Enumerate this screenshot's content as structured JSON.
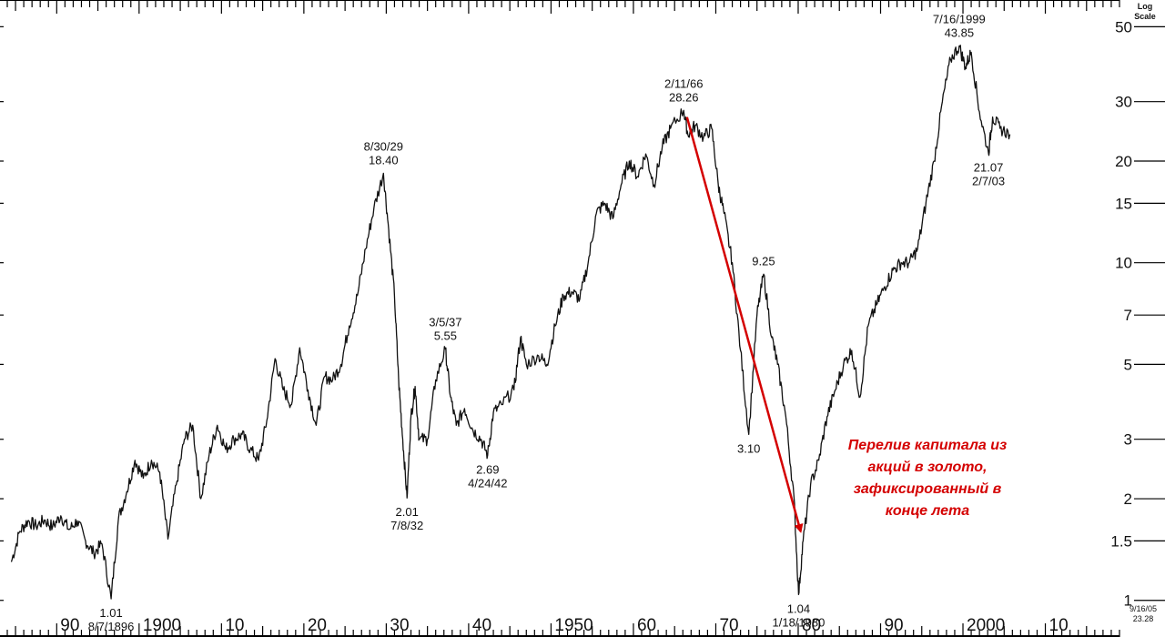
{
  "chart_data": {
    "type": "line",
    "title": "",
    "scale_label": [
      "Log",
      "Scale"
    ],
    "ylim": [
      0.95,
      55
    ],
    "xlim": [
      1884,
      2019
    ],
    "y_scale": "log",
    "grid": false,
    "yticks": [
      {
        "v": 50,
        "label": "50"
      },
      {
        "v": 30,
        "label": "30"
      },
      {
        "v": 20,
        "label": "20"
      },
      {
        "v": 15,
        "label": "15"
      },
      {
        "v": 10,
        "label": "10"
      },
      {
        "v": 7,
        "label": "7"
      },
      {
        "v": 5,
        "label": "5"
      },
      {
        "v": 3,
        "label": "3"
      },
      {
        "v": 2,
        "label": "2"
      },
      {
        "v": 1.5,
        "label": "1.5"
      },
      {
        "v": 1,
        "label": "1"
      }
    ],
    "xticks": [
      {
        "v": 1890,
        "label": "90"
      },
      {
        "v": 1900,
        "label": "1900"
      },
      {
        "v": 1910,
        "label": "10"
      },
      {
        "v": 1920,
        "label": "20"
      },
      {
        "v": 1930,
        "label": "30"
      },
      {
        "v": 1940,
        "label": "40"
      },
      {
        "v": 1950,
        "label": "1950"
      },
      {
        "v": 1960,
        "label": "60"
      },
      {
        "v": 1970,
        "label": "70"
      },
      {
        "v": 1980,
        "label": "80"
      },
      {
        "v": 1990,
        "label": "90"
      },
      {
        "v": 2000,
        "label": "2000"
      },
      {
        "v": 2010,
        "label": "10"
      }
    ],
    "series": [
      {
        "points": [
          [
            1884.5,
            1.3
          ],
          [
            1885.5,
            1.6
          ],
          [
            1886.5,
            1.72
          ],
          [
            1887.5,
            1.66
          ],
          [
            1888.5,
            1.73
          ],
          [
            1889.5,
            1.65
          ],
          [
            1890.5,
            1.78
          ],
          [
            1891.5,
            1.62
          ],
          [
            1892.5,
            1.72
          ],
          [
            1893.5,
            1.5
          ],
          [
            1894.5,
            1.38
          ],
          [
            1895.5,
            1.47
          ],
          [
            1896.6,
            1.01
          ],
          [
            1897.5,
            1.75
          ],
          [
            1898.5,
            2.1
          ],
          [
            1899.5,
            2.6
          ],
          [
            1900.5,
            2.3
          ],
          [
            1901.5,
            2.6
          ],
          [
            1902.5,
            2.4
          ],
          [
            1903.5,
            1.52
          ],
          [
            1904.5,
            2.2
          ],
          [
            1905.5,
            3.0
          ],
          [
            1906.5,
            3.3
          ],
          [
            1907.5,
            2.0
          ],
          [
            1908.5,
            2.7
          ],
          [
            1909.5,
            3.3
          ],
          [
            1910.5,
            2.8
          ],
          [
            1911.5,
            3.0
          ],
          [
            1912.5,
            3.1
          ],
          [
            1913.5,
            2.8
          ],
          [
            1914.5,
            2.6
          ],
          [
            1915.5,
            3.4
          ],
          [
            1916.5,
            5.2
          ],
          [
            1917.5,
            4.2
          ],
          [
            1918.5,
            3.8
          ],
          [
            1919.5,
            5.6
          ],
          [
            1920.5,
            4.2
          ],
          [
            1921.5,
            3.3
          ],
          [
            1922.5,
            4.6
          ],
          [
            1923.5,
            4.5
          ],
          [
            1924.5,
            5.0
          ],
          [
            1925.5,
            6.5
          ],
          [
            1926.5,
            8.0
          ],
          [
            1927.5,
            11.0
          ],
          [
            1928.5,
            14.5
          ],
          [
            1929.66,
            18.4
          ],
          [
            1930.3,
            12.5
          ],
          [
            1931.0,
            8.0
          ],
          [
            1931.5,
            4.5
          ],
          [
            1932.0,
            3.0
          ],
          [
            1932.52,
            2.01
          ],
          [
            1933.0,
            3.5
          ],
          [
            1933.5,
            4.3
          ],
          [
            1934.0,
            3.0
          ],
          [
            1935.0,
            3.0
          ],
          [
            1936.0,
            4.5
          ],
          [
            1937.18,
            5.55
          ],
          [
            1937.8,
            4.0
          ],
          [
            1938.5,
            3.3
          ],
          [
            1939.5,
            3.7
          ],
          [
            1940.5,
            3.2
          ],
          [
            1941.5,
            3.0
          ],
          [
            1942.31,
            2.69
          ],
          [
            1943.0,
            3.6
          ],
          [
            1944.0,
            3.8
          ],
          [
            1945.5,
            4.2
          ],
          [
            1946.3,
            6.0
          ],
          [
            1947.0,
            5.0
          ],
          [
            1948.5,
            5.3
          ],
          [
            1949.5,
            5.0
          ],
          [
            1950.5,
            6.5
          ],
          [
            1951.5,
            8.0
          ],
          [
            1952.5,
            8.2
          ],
          [
            1953.5,
            7.8
          ],
          [
            1954.5,
            10.0
          ],
          [
            1955.5,
            14.0
          ],
          [
            1956.5,
            15.0
          ],
          [
            1957.5,
            13.5
          ],
          [
            1958.5,
            17.0
          ],
          [
            1959.5,
            20.0
          ],
          [
            1960.5,
            18.0
          ],
          [
            1961.5,
            21.0
          ],
          [
            1962.5,
            17.0
          ],
          [
            1963.5,
            22.0
          ],
          [
            1964.5,
            25.0
          ],
          [
            1966.11,
            28.26
          ],
          [
            1966.6,
            24.0
          ],
          [
            1967.5,
            25.5
          ],
          [
            1968.5,
            23.5
          ],
          [
            1969.5,
            25.0
          ],
          [
            1970.3,
            17.0
          ],
          [
            1971.0,
            14.0
          ],
          [
            1972.0,
            10.0
          ],
          [
            1973.0,
            5.5
          ],
          [
            1974.0,
            3.1
          ],
          [
            1975.0,
            7.0
          ],
          [
            1975.8,
            9.25
          ],
          [
            1976.8,
            6.0
          ],
          [
            1977.5,
            5.0
          ],
          [
            1978.5,
            3.5
          ],
          [
            1979.5,
            2.0
          ],
          [
            1980.05,
            1.04
          ],
          [
            1980.6,
            1.5
          ],
          [
            1981.5,
            2.2
          ],
          [
            1982.5,
            2.6
          ],
          [
            1983.5,
            3.5
          ],
          [
            1984.5,
            4.2
          ],
          [
            1985.5,
            5.0
          ],
          [
            1986.5,
            5.5
          ],
          [
            1987.5,
            4.0
          ],
          [
            1988.5,
            6.5
          ],
          [
            1989.5,
            7.5
          ],
          [
            1990.5,
            8.5
          ],
          [
            1991.5,
            9.5
          ],
          [
            1992.5,
            10.0
          ],
          [
            1993.5,
            10.0
          ],
          [
            1994.5,
            11.0
          ],
          [
            1995.5,
            15.0
          ],
          [
            1996.5,
            20.0
          ],
          [
            1997.5,
            30.0
          ],
          [
            1998.5,
            40.0
          ],
          [
            1999.54,
            43.85
          ],
          [
            2000.3,
            38.0
          ],
          [
            2001.0,
            42.0
          ],
          [
            2002.0,
            28.0
          ],
          [
            2003.1,
            21.07
          ],
          [
            2003.6,
            27.0
          ],
          [
            2004.5,
            25.0
          ],
          [
            2005.7,
            24.0
          ]
        ]
      }
    ],
    "annotations": [
      {
        "x": 1896.6,
        "y": 1.01,
        "lines": [
          "1.01",
          "8/7/1896"
        ],
        "pos": "below"
      },
      {
        "x": 1929.66,
        "y": 18.4,
        "lines": [
          "8/30/29",
          "18.40"
        ],
        "pos": "above"
      },
      {
        "x": 1932.52,
        "y": 2.01,
        "lines": [
          "2.01",
          "7/8/32"
        ],
        "pos": "below"
      },
      {
        "x": 1937.18,
        "y": 5.55,
        "lines": [
          "3/5/37",
          "5.55"
        ],
        "pos": "above"
      },
      {
        "x": 1942.31,
        "y": 2.69,
        "lines": [
          "2.69",
          "4/24/42"
        ],
        "pos": "below"
      },
      {
        "x": 1966.11,
        "y": 28.26,
        "lines": [
          "2/11/66",
          "28.26"
        ],
        "pos": "above"
      },
      {
        "x": 1975.8,
        "y": 9.25,
        "lines": [
          "9.25"
        ],
        "pos": "above"
      },
      {
        "x": 1974.0,
        "y": 3.1,
        "lines": [
          "3.10"
        ],
        "pos": "below"
      },
      {
        "x": 1980.05,
        "y": 1.04,
        "lines": [
          "1.04",
          "1/18/1980"
        ],
        "pos": "below"
      },
      {
        "x": 1999.54,
        "y": 43.85,
        "lines": [
          "7/16/1999",
          "43.85"
        ],
        "pos": "above"
      },
      {
        "x": 2003.1,
        "y": 21.07,
        "lines": [
          "21.07",
          "2/7/03"
        ],
        "pos": "below"
      }
    ],
    "callout": {
      "lines": [
        "Перелив капитала из",
        "акций в золото,",
        "зафиксированный в",
        "конце лета"
      ],
      "color": "#d40000",
      "arrow_from": {
        "x": 1966.5,
        "y": 27.0
      },
      "arrow_to": {
        "x": 1980.3,
        "y": 1.6
      }
    },
    "date_stamp": [
      "9/16/05",
      "23.28"
    ]
  }
}
